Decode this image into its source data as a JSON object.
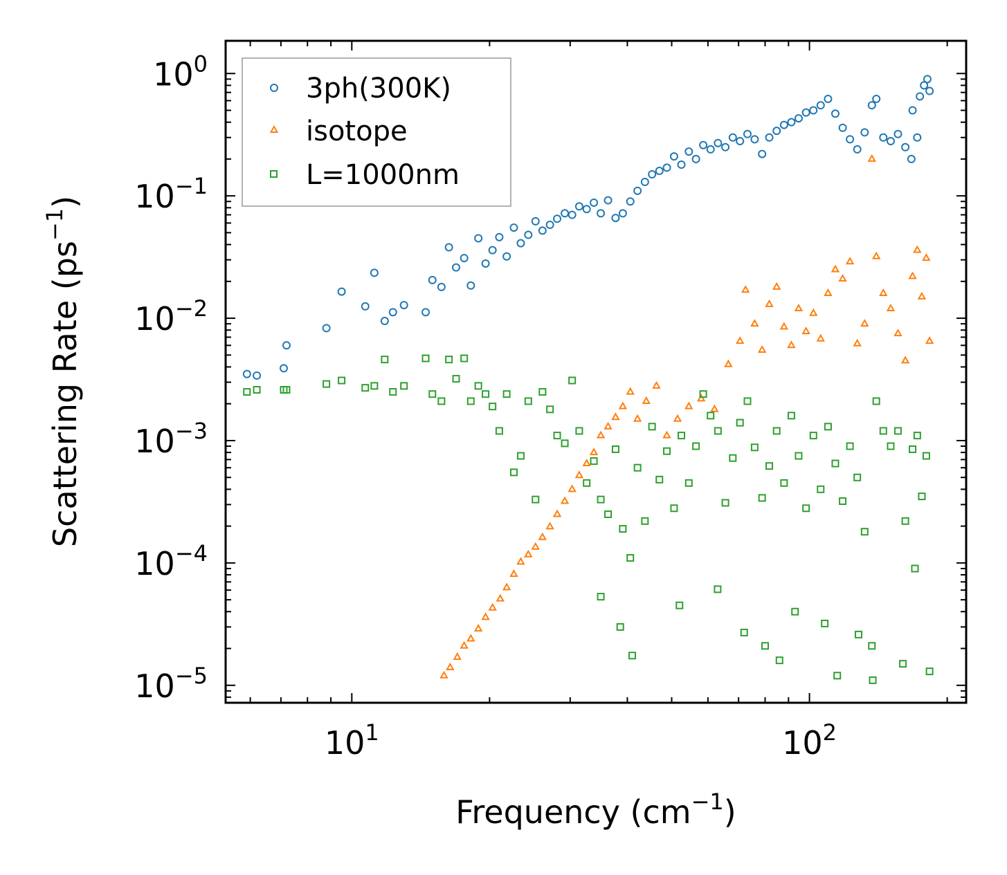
{
  "chart_data": {
    "type": "scatter",
    "xscale": "log",
    "yscale": "log",
    "xlabel": "Frequency (cm",
    "xlabel_sup": "−1",
    "xlabel_end": ")",
    "ylabel": "Scattering Rate (ps",
    "ylabel_sup": "−1",
    "ylabel_end": ")",
    "xlim": [
      5.3,
      220
    ],
    "ylim": [
      7.2e-06,
      1.85
    ],
    "x_major_ticks": [
      {
        "value": 10,
        "base": "10",
        "exp": "1"
      },
      {
        "value": 100,
        "base": "10",
        "exp": "2"
      }
    ],
    "y_major_ticks": [
      {
        "value": 1,
        "base": "10",
        "exp": "0"
      },
      {
        "value": 0.1,
        "base": "10",
        "exp": "−1"
      },
      {
        "value": 0.01,
        "base": "10",
        "exp": "−2"
      },
      {
        "value": 0.001,
        "base": "10",
        "exp": "−3"
      },
      {
        "value": 0.0001,
        "base": "10",
        "exp": "−4"
      },
      {
        "value": 1e-05,
        "base": "10",
        "exp": "−5"
      }
    ],
    "legend_position": "top-left",
    "series": [
      {
        "name": "3ph(300K)",
        "marker": "circle",
        "color": "#1f77b4",
        "points": [
          [
            5.9,
            0.0035
          ],
          [
            6.2,
            0.0034
          ],
          [
            7.1,
            0.0039
          ],
          [
            7.2,
            0.006
          ],
          [
            8.8,
            0.0083
          ],
          [
            9.5,
            0.0165
          ],
          [
            10.7,
            0.0125
          ],
          [
            11.2,
            0.0235
          ],
          [
            11.8,
            0.0095
          ],
          [
            12.3,
            0.0112
          ],
          [
            13.0,
            0.0128
          ],
          [
            14.5,
            0.0112
          ],
          [
            15.0,
            0.0205
          ],
          [
            15.7,
            0.018
          ],
          [
            16.3,
            0.038
          ],
          [
            16.9,
            0.026
          ],
          [
            17.6,
            0.031
          ],
          [
            18.2,
            0.0185
          ],
          [
            18.9,
            0.045
          ],
          [
            19.6,
            0.028
          ],
          [
            20.3,
            0.036
          ],
          [
            21.0,
            0.046
          ],
          [
            21.8,
            0.032
          ],
          [
            22.6,
            0.055
          ],
          [
            23.4,
            0.041
          ],
          [
            24.3,
            0.048
          ],
          [
            25.2,
            0.062
          ],
          [
            26.1,
            0.052
          ],
          [
            27.1,
            0.058
          ],
          [
            28.1,
            0.065
          ],
          [
            29.2,
            0.072
          ],
          [
            30.3,
            0.07
          ],
          [
            31.4,
            0.082
          ],
          [
            32.6,
            0.078
          ],
          [
            33.8,
            0.088
          ],
          [
            35.0,
            0.072
          ],
          [
            36.3,
            0.092
          ],
          [
            37.7,
            0.066
          ],
          [
            39.1,
            0.072
          ],
          [
            40.6,
            0.09
          ],
          [
            42.1,
            0.11
          ],
          [
            43.7,
            0.13
          ],
          [
            45.3,
            0.15
          ],
          [
            47.0,
            0.16
          ],
          [
            48.8,
            0.17
          ],
          [
            50.6,
            0.21
          ],
          [
            52.5,
            0.18
          ],
          [
            54.5,
            0.23
          ],
          [
            56.5,
            0.2
          ],
          [
            58.6,
            0.26
          ],
          [
            60.8,
            0.24
          ],
          [
            63.1,
            0.27
          ],
          [
            65.5,
            0.25
          ],
          [
            68.0,
            0.3
          ],
          [
            70.5,
            0.28
          ],
          [
            73.2,
            0.32
          ],
          [
            75.9,
            0.29
          ],
          [
            78.8,
            0.22
          ],
          [
            81.7,
            0.3
          ],
          [
            84.8,
            0.34
          ],
          [
            88.0,
            0.38
          ],
          [
            91.3,
            0.4
          ],
          [
            94.7,
            0.43
          ],
          [
            98.3,
            0.48
          ],
          [
            102.0,
            0.5
          ],
          [
            105.8,
            0.55
          ],
          [
            109.8,
            0.62
          ],
          [
            113.9,
            0.47
          ],
          [
            118.2,
            0.36
          ],
          [
            122.6,
            0.29
          ],
          [
            127.2,
            0.24
          ],
          [
            132.0,
            0.33
          ],
          [
            136.9,
            0.55
          ],
          [
            140.0,
            0.62
          ],
          [
            145.0,
            0.3
          ],
          [
            150.5,
            0.28
          ],
          [
            156.1,
            0.32
          ],
          [
            162.0,
            0.25
          ],
          [
            168.0,
            0.5
          ],
          [
            174.3,
            0.65
          ],
          [
            178.0,
            0.8
          ],
          [
            181.0,
            0.9
          ],
          [
            183.0,
            0.72
          ],
          [
            167.0,
            0.2
          ],
          [
            172.0,
            0.3
          ]
        ]
      },
      {
        "name": "isotope",
        "marker": "triangle",
        "color": "#ff7f0e",
        "points": [
          [
            15.9,
            1.2e-05
          ],
          [
            16.4,
            1.4e-05
          ],
          [
            17.0,
            1.7e-05
          ],
          [
            17.6,
            2.1e-05
          ],
          [
            18.2,
            2.4e-05
          ],
          [
            18.9,
            2.9e-05
          ],
          [
            19.6,
            3.6e-05
          ],
          [
            20.3,
            4.3e-05
          ],
          [
            21.1,
            5.1e-05
          ],
          [
            21.8,
            6.3e-05
          ],
          [
            22.6,
            8.1e-05
          ],
          [
            23.4,
            0.000102
          ],
          [
            24.3,
            0.000117
          ],
          [
            25.2,
            0.000135
          ],
          [
            26.1,
            0.000162
          ],
          [
            27.1,
            0.000198
          ],
          [
            28.1,
            0.00025
          ],
          [
            29.2,
            0.00032
          ],
          [
            30.3,
            0.0004
          ],
          [
            31.4,
            0.00052
          ],
          [
            32.6,
            0.00065
          ],
          [
            33.8,
            0.0008
          ],
          [
            35.0,
            0.0011
          ],
          [
            36.3,
            0.0013
          ],
          [
            37.7,
            0.00155
          ],
          [
            39.1,
            0.0019
          ],
          [
            40.6,
            0.0025
          ],
          [
            42.1,
            0.0015
          ],
          [
            44.0,
            0.0021
          ],
          [
            46.3,
            0.0028
          ],
          [
            48.8,
            0.0011
          ],
          [
            51.5,
            0.0015
          ],
          [
            54.5,
            0.0019
          ],
          [
            58.0,
            0.0022
          ],
          [
            62.0,
            0.0018
          ],
          [
            66.5,
            0.0042
          ],
          [
            70.5,
            0.0065
          ],
          [
            72.5,
            0.017
          ],
          [
            75.9,
            0.009
          ],
          [
            78.8,
            0.0055
          ],
          [
            81.7,
            0.013
          ],
          [
            84.8,
            0.018
          ],
          [
            88.0,
            0.0085
          ],
          [
            91.3,
            0.006
          ],
          [
            94.7,
            0.012
          ],
          [
            98.3,
            0.0078
          ],
          [
            102.0,
            0.011
          ],
          [
            105.8,
            0.0068
          ],
          [
            109.8,
            0.016
          ],
          [
            113.9,
            0.025
          ],
          [
            118.2,
            0.021
          ],
          [
            122.6,
            0.029
          ],
          [
            127.2,
            0.0062
          ],
          [
            132.0,
            0.009
          ],
          [
            136.9,
            0.2
          ],
          [
            140.0,
            0.032
          ],
          [
            145.0,
            0.016
          ],
          [
            150.5,
            0.012
          ],
          [
            156.1,
            0.0075
          ],
          [
            162.0,
            0.0045
          ],
          [
            168.0,
            0.022
          ],
          [
            172.0,
            0.036
          ],
          [
            176.0,
            0.015
          ],
          [
            180.0,
            0.031
          ],
          [
            183.0,
            0.0065
          ]
        ]
      },
      {
        "name": "L=1000nm",
        "marker": "square",
        "color": "#2ca02c",
        "points": [
          [
            5.9,
            0.0025
          ],
          [
            6.2,
            0.0026
          ],
          [
            7.1,
            0.0026
          ],
          [
            7.2,
            0.0026
          ],
          [
            8.8,
            0.0029
          ],
          [
            9.5,
            0.0031
          ],
          [
            10.7,
            0.0027
          ],
          [
            11.2,
            0.0028
          ],
          [
            11.8,
            0.0046
          ],
          [
            12.3,
            0.0025
          ],
          [
            13.0,
            0.0028
          ],
          [
            14.5,
            0.0047
          ],
          [
            15.0,
            0.0024
          ],
          [
            15.7,
            0.0021
          ],
          [
            16.3,
            0.0046
          ],
          [
            16.9,
            0.0032
          ],
          [
            17.6,
            0.0047
          ],
          [
            18.2,
            0.0021
          ],
          [
            18.9,
            0.0028
          ],
          [
            19.6,
            0.0024
          ],
          [
            20.3,
            0.0019
          ],
          [
            21.0,
            0.0012
          ],
          [
            21.8,
            0.0024
          ],
          [
            22.6,
            0.00055
          ],
          [
            23.4,
            0.00075
          ],
          [
            24.3,
            0.0021
          ],
          [
            25.2,
            0.00033
          ],
          [
            26.1,
            0.0025
          ],
          [
            27.1,
            0.0018
          ],
          [
            28.1,
            0.0011
          ],
          [
            29.2,
            0.00095
          ],
          [
            30.3,
            0.0031
          ],
          [
            31.4,
            0.0012
          ],
          [
            32.6,
            0.00045
          ],
          [
            33.8,
            0.00068
          ],
          [
            35.0,
            0.00033
          ],
          [
            36.3,
            0.00025
          ],
          [
            37.7,
            0.00085
          ],
          [
            39.1,
            0.00019
          ],
          [
            40.6,
            0.00011
          ],
          [
            42.1,
            0.0006
          ],
          [
            43.7,
            0.00022
          ],
          [
            45.3,
            0.0013
          ],
          [
            47.0,
            0.00048
          ],
          [
            48.8,
            0.00082
          ],
          [
            50.6,
            0.00028
          ],
          [
            52.5,
            0.0011
          ],
          [
            54.5,
            0.00045
          ],
          [
            56.5,
            0.0009
          ],
          [
            58.6,
            0.0024
          ],
          [
            60.8,
            0.0016
          ],
          [
            63.1,
            0.0012
          ],
          [
            65.5,
            0.00031
          ],
          [
            68.0,
            0.00072
          ],
          [
            70.5,
            0.0014
          ],
          [
            73.2,
            0.0021
          ],
          [
            75.9,
            0.00088
          ],
          [
            78.8,
            0.00034
          ],
          [
            81.7,
            0.00062
          ],
          [
            84.8,
            0.0012
          ],
          [
            88.0,
            0.00045
          ],
          [
            91.3,
            0.0016
          ],
          [
            94.7,
            0.00075
          ],
          [
            98.3,
            0.00028
          ],
          [
            102.0,
            0.0011
          ],
          [
            105.8,
            0.0004
          ],
          [
            109.8,
            0.0013
          ],
          [
            113.9,
            0.00065
          ],
          [
            118.2,
            0.00032
          ],
          [
            122.6,
            0.0009
          ],
          [
            127.2,
            0.0005
          ],
          [
            132.0,
            0.00018
          ],
          [
            136.9,
            2.1e-05
          ],
          [
            140.0,
            0.0021
          ],
          [
            145.0,
            0.0012
          ],
          [
            150.5,
            0.0009
          ],
          [
            156.1,
            0.0012
          ],
          [
            162.0,
            0.00022
          ],
          [
            168.0,
            0.00085
          ],
          [
            172.0,
            0.0011
          ],
          [
            176.0,
            0.00035
          ],
          [
            180.0,
            0.00075
          ],
          [
            183.0,
            1.3e-05
          ],
          [
            35.0,
            5.3e-05
          ],
          [
            38.6,
            3e-05
          ],
          [
            41.0,
            1.75e-05
          ],
          [
            52.0,
            4.5e-05
          ],
          [
            63.0,
            6.1e-05
          ],
          [
            72.0,
            2.7e-05
          ],
          [
            80.0,
            2.1e-05
          ],
          [
            86.0,
            1.6e-05
          ],
          [
            93.0,
            4e-05
          ],
          [
            108.0,
            3.2e-05
          ],
          [
            115.0,
            1.2e-05
          ],
          [
            128.0,
            2.6e-05
          ],
          [
            137.5,
            1.1e-05
          ],
          [
            160.0,
            1.5e-05
          ],
          [
            170.0,
            9e-05
          ]
        ]
      }
    ]
  }
}
